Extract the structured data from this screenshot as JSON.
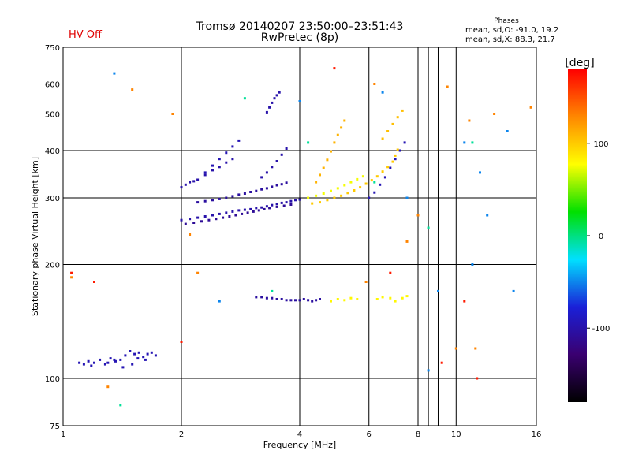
{
  "status": {
    "hv": "HV Off"
  },
  "header": {
    "title_line1": "Tromsø 20140207 23:50:00–23:51:43",
    "title_line2": "RwPretec (8p)"
  },
  "phases": {
    "heading": "Phases",
    "o_mode": "mean, sd,O: -91.0, 19.2",
    "x_mode": "mean, sd,X:  88.3, 21.7"
  },
  "colors": {
    "hv_off": "#e00000"
  },
  "chart_data": {
    "type": "scatter",
    "xlabel": "Frequency [MHz]",
    "ylabel": "Stationary phase Virtual Height [km]",
    "x_scale": "log",
    "y_scale": "log",
    "xlim": [
      1,
      16
    ],
    "ylim": [
      75,
      750
    ],
    "x_ticks": [
      1,
      2,
      4,
      6,
      8,
      10,
      16
    ],
    "x_minor_ticks": [
      8.5,
      9
    ],
    "y_ticks": [
      75,
      100,
      200,
      300,
      400,
      500,
      600,
      750
    ],
    "grid": true,
    "colorbar": {
      "label": "[deg]",
      "range": [
        -180,
        180
      ],
      "ticks": [
        100,
        0,
        -100
      ],
      "colors": [
        "#000000",
        "#3a0070",
        "#1a20d8",
        "#00e0ff",
        "#00e000",
        "#ffff00",
        "#ff8800",
        "#ff0000"
      ]
    },
    "series": [
      {
        "x": [
          1.1,
          1.13,
          1.16,
          1.2,
          1.24,
          1.28,
          1.32,
          1.36,
          1.4,
          1.44,
          1.48,
          1.52,
          1.56,
          1.6,
          1.64,
          1.68,
          1.72,
          1.18,
          1.3,
          1.42,
          1.55,
          1.62,
          1.5,
          1.35
        ],
        "y": [
          110,
          109,
          111,
          110,
          112,
          109,
          113,
          111,
          112,
          115,
          118,
          116,
          117,
          114,
          116,
          117,
          115,
          108,
          110,
          107,
          113,
          112,
          109,
          112
        ],
        "phase": -95
      },
      {
        "x": [
          2.0,
          2.1,
          2.2,
          2.3,
          2.4,
          2.5,
          2.6,
          2.7,
          2.8,
          2.9,
          3.0,
          3.1,
          3.2,
          3.3,
          3.4,
          3.5,
          3.6,
          3.7,
          3.8,
          3.9,
          4.0
        ],
        "y": [
          262,
          264,
          266,
          268,
          270,
          272,
          274,
          276,
          278,
          279,
          280,
          282,
          283,
          285,
          287,
          289,
          291,
          292,
          294,
          296,
          297
        ],
        "phase": -100
      },
      {
        "x": [
          2.05,
          2.15,
          2.25,
          2.35,
          2.45,
          2.55,
          2.65,
          2.75,
          2.85,
          2.95,
          3.05,
          3.15,
          3.25,
          3.35,
          3.5,
          3.65,
          3.8
        ],
        "y": [
          256,
          258,
          260,
          262,
          264,
          266,
          268,
          270,
          272,
          274,
          276,
          278,
          280,
          282,
          284,
          286,
          288
        ],
        "phase": -110
      },
      {
        "x": [
          2.2,
          2.3,
          2.4,
          2.5,
          2.6,
          2.7,
          2.8,
          2.9,
          3.0,
          3.1,
          3.2,
          3.3,
          3.4,
          3.5,
          3.6,
          3.7
        ],
        "y": [
          292,
          294,
          296,
          298,
          300,
          303,
          306,
          308,
          311,
          313,
          316,
          318,
          321,
          324,
          326,
          329
        ],
        "phase": -105
      },
      {
        "x": [
          2.0,
          2.05,
          2.1,
          2.15,
          2.2,
          2.3,
          2.4,
          2.5,
          2.6,
          2.7
        ],
        "y": [
          320,
          325,
          330,
          332,
          335,
          345,
          355,
          362,
          372,
          380
        ],
        "phase": -100
      },
      {
        "x": [
          2.3,
          2.4,
          2.5,
          2.6,
          2.7,
          2.8
        ],
        "y": [
          350,
          365,
          380,
          395,
          410,
          425
        ],
        "phase": -95
      },
      {
        "x": [
          3.2,
          3.3,
          3.4,
          3.5,
          3.6,
          3.7
        ],
        "y": [
          340,
          350,
          362,
          375,
          390,
          405
        ],
        "phase": -100
      },
      {
        "x": [
          3.3,
          3.35,
          3.4,
          3.45,
          3.5,
          3.55
        ],
        "y": [
          505,
          520,
          535,
          550,
          560,
          570
        ],
        "phase": -100
      },
      {
        "x": [
          3.1,
          3.2,
          3.3,
          3.4,
          3.5,
          3.6,
          3.7,
          3.8,
          3.9,
          4.0,
          4.1,
          4.2,
          4.3,
          4.4,
          4.5
        ],
        "y": [
          164,
          164,
          163,
          163,
          162,
          162,
          161,
          161,
          161,
          161,
          162,
          161,
          160,
          161,
          162
        ],
        "phase": -105
      },
      {
        "x": [
          4.4,
          4.5,
          4.6,
          4.7,
          4.8,
          4.9,
          5.0,
          5.1,
          5.2
        ],
        "y": [
          330,
          345,
          360,
          378,
          398,
          420,
          440,
          460,
          480
        ],
        "phase": 110
      },
      {
        "x": [
          4.3,
          4.5,
          4.7,
          4.9,
          5.1,
          5.3,
          5.5,
          5.7,
          5.9,
          6.1,
          6.3,
          6.5,
          6.7,
          6.9,
          7.0,
          7.1
        ],
        "y": [
          290,
          292,
          296,
          300,
          304,
          309,
          314,
          320,
          327,
          334,
          342,
          352,
          362,
          374,
          388,
          402
        ],
        "phase": 100
      },
      {
        "x": [
          4.2,
          4.4,
          4.6,
          4.8,
          5.0,
          5.2,
          5.4,
          5.6,
          5.8
        ],
        "y": [
          300,
          304,
          308,
          313,
          318,
          324,
          330,
          336,
          342
        ],
        "phase": 75
      },
      {
        "x": [
          6.0,
          6.2,
          6.4,
          6.6,
          6.8,
          7.0,
          7.2,
          7.4
        ],
        "y": [
          300,
          310,
          325,
          340,
          360,
          380,
          400,
          420
        ],
        "phase": -95
      },
      {
        "x": [
          6.5,
          6.7,
          6.9,
          7.1,
          7.3
        ],
        "y": [
          430,
          450,
          470,
          490,
          510
        ],
        "phase": 105
      },
      {
        "x": [
          4.8,
          5.0,
          5.2,
          5.4,
          5.6,
          6.3,
          6.5,
          6.8,
          7.0,
          7.3,
          7.5
        ],
        "y": [
          160,
          162,
          161,
          163,
          162,
          162,
          164,
          163,
          160,
          163,
          165
        ],
        "phase": 80
      },
      {
        "x": [
          1.35,
          2.5,
          4.0,
          6.5,
          7.5,
          8.5,
          9.0,
          10.5,
          11.0,
          11.5,
          12.0,
          13.5,
          14.0
        ],
        "y": [
          640,
          160,
          540,
          570,
          300,
          105,
          170,
          420,
          200,
          350,
          270,
          450,
          170
        ],
        "phase": -50
      },
      {
        "x": [
          1.05,
          1.3,
          1.5,
          1.9,
          2.1,
          2.2,
          5.9,
          6.2,
          7.5,
          8.0,
          9.5,
          10.0,
          10.8,
          11.2,
          12.5,
          15.5
        ],
        "y": [
          185,
          95,
          580,
          500,
          240,
          190,
          180,
          600,
          230,
          270,
          590,
          120,
          480,
          120,
          500,
          520
        ],
        "phase": 130
      },
      {
        "x": [
          1.05,
          1.2,
          2.0,
          4.9,
          6.8,
          9.2,
          10.5,
          11.3
        ],
        "y": [
          190,
          180,
          125,
          660,
          190,
          110,
          160,
          100
        ],
        "phase": 170
      },
      {
        "x": [
          1.4,
          2.9,
          3.4,
          4.2,
          6.2,
          8.5,
          11.0
        ],
        "y": [
          85,
          550,
          170,
          420,
          330,
          250,
          420
        ],
        "phase": -5
      }
    ]
  }
}
